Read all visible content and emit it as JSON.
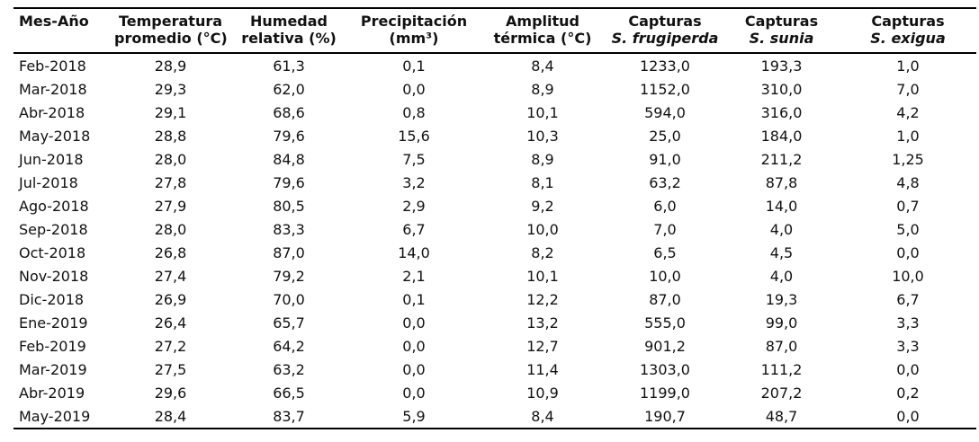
{
  "chart_data": {
    "type": "table",
    "title": "",
    "columns": [
      {
        "line1": "Mes-Año",
        "line2": "",
        "italic_line2": false
      },
      {
        "line1": "Temperatura",
        "line2": "promedio (°C)",
        "italic_line2": false
      },
      {
        "line1": "Humedad",
        "line2": "relativa (%)",
        "italic_line2": false
      },
      {
        "line1": "Precipitación",
        "line2": "(mm³)",
        "italic_line2": false
      },
      {
        "line1": "Amplitud",
        "line2": "térmica (°C)",
        "italic_line2": false
      },
      {
        "line1": "Capturas",
        "line2": "S. frugiperda",
        "italic_line2": true
      },
      {
        "line1": "Capturas",
        "line2": "S. sunia",
        "italic_line2": true
      },
      {
        "line1": "Capturas",
        "line2": "S. exigua",
        "italic_line2": true
      }
    ],
    "rows": [
      [
        "Feb-2018",
        "28,9",
        "61,3",
        "0,1",
        "8,4",
        "1233,0",
        "193,3",
        "1,0"
      ],
      [
        "Mar-2018",
        "29,3",
        "62,0",
        "0,0",
        "8,9",
        "1152,0",
        "310,0",
        "7,0"
      ],
      [
        "Abr-2018",
        "29,1",
        "68,6",
        "0,8",
        "10,1",
        "594,0",
        "316,0",
        "4,2"
      ],
      [
        "May-2018",
        "28,8",
        "79,6",
        "15,6",
        "10,3",
        "25,0",
        "184,0",
        "1,0"
      ],
      [
        "Jun-2018",
        "28,0",
        "84,8",
        "7,5",
        "8,9",
        "91,0",
        "211,2",
        "1,25"
      ],
      [
        "Jul-2018",
        "27,8",
        "79,6",
        "3,2",
        "8,1",
        "63,2",
        "87,8",
        "4,8"
      ],
      [
        "Ago-2018",
        "27,9",
        "80,5",
        "2,9",
        "9,2",
        "6,0",
        "14,0",
        "0,7"
      ],
      [
        "Sep-2018",
        "28,0",
        "83,3",
        "6,7",
        "10,0",
        "7,0",
        "4,0",
        "5,0"
      ],
      [
        "Oct-2018",
        "26,8",
        "87,0",
        "14,0",
        "8,2",
        "6,5",
        "4,5",
        "0,0"
      ],
      [
        "Nov-2018",
        "27,4",
        "79,2",
        "2,1",
        "10,1",
        "10,0",
        "4,0",
        "10,0"
      ],
      [
        "Dic-2018",
        "26,9",
        "70,0",
        "0,1",
        "12,2",
        "87,0",
        "19,3",
        "6,7"
      ],
      [
        "Ene-2019",
        "26,4",
        "65,7",
        "0,0",
        "13,2",
        "555,0",
        "99,0",
        "3,3"
      ],
      [
        "Feb-2019",
        "27,2",
        "64,2",
        "0,0",
        "12,7",
        "901,2",
        "87,0",
        "3,3"
      ],
      [
        "Mar-2019",
        "27,5",
        "63,2",
        "0,0",
        "11,4",
        "1303,0",
        "111,2",
        "0,0"
      ],
      [
        "Abr-2019",
        "29,6",
        "66,5",
        "0,0",
        "10,9",
        "1199,0",
        "207,2",
        "0,2"
      ],
      [
        "May-2019",
        "28,4",
        "83,7",
        "5,9",
        "8,4",
        "190,7",
        "48,7",
        "0,0"
      ]
    ],
    "colors": {
      "text": "#111111",
      "border": "#000000",
      "background": "#ffffff"
    }
  }
}
